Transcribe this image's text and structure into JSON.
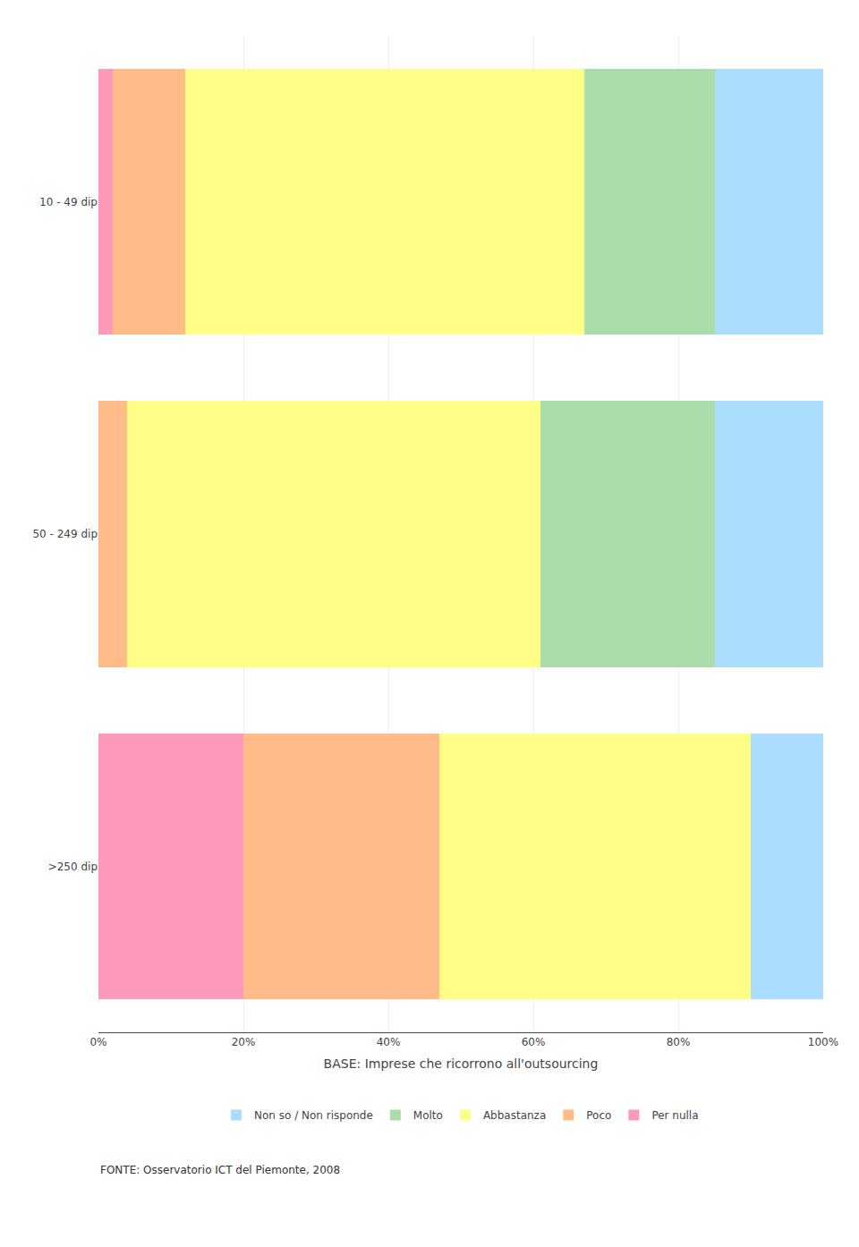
{
  "chart_data": {
    "type": "bar",
    "orientation": "horizontal",
    "stacked": true,
    "categories": [
      "10 - 49 dip",
      "50 - 249 dip",
      ">250 dip"
    ],
    "series": [
      {
        "name": "Per nulla",
        "color": "#FF99BB",
        "values": [
          2,
          0,
          20
        ]
      },
      {
        "name": "Poco",
        "color": "#FFBB88",
        "values": [
          10,
          4,
          27
        ]
      },
      {
        "name": "Abbastanza",
        "color": "#FFFF88",
        "values": [
          55,
          57,
          43
        ]
      },
      {
        "name": "Molto",
        "color": "#AADDAA",
        "values": [
          18,
          24,
          0
        ]
      },
      {
        "name": "Non so / Non risponde",
        "color": "#AADDFF",
        "values": [
          15,
          15,
          10
        ]
      }
    ],
    "xlabel": "BASE: Imprese che ricorrono all'outsourcing",
    "annotations": [
      "FONTE: Osservatorio ICT del Piemonte, 2008"
    ],
    "xlim": [
      0,
      100
    ],
    "xticks": [
      {
        "value": 0,
        "label": "0%"
      },
      {
        "value": 20,
        "label": "20%"
      },
      {
        "value": 40,
        "label": "40%"
      },
      {
        "value": 60,
        "label": "60%"
      },
      {
        "value": 80,
        "label": "80%"
      },
      {
        "value": 100,
        "label": "100%"
      }
    ],
    "grid": true,
    "legend": "bottom"
  }
}
